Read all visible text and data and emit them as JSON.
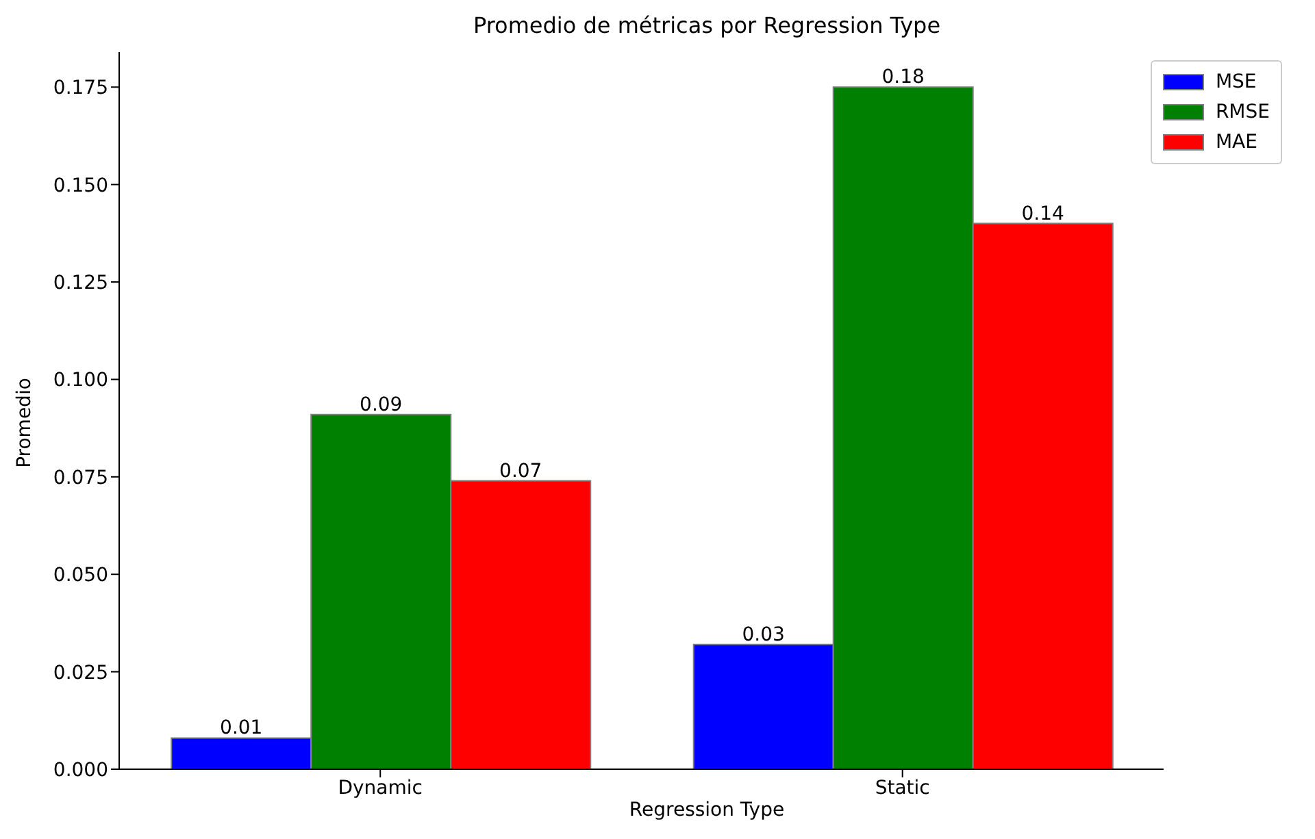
{
  "chart_data": {
    "type": "bar",
    "title": "Promedio de métricas por Regression Type",
    "xlabel": "Regression Type",
    "ylabel": "Promedio",
    "categories": [
      "Dynamic",
      "Static"
    ],
    "series": [
      {
        "name": "MSE",
        "color": "#0000ff",
        "values": [
          0.008,
          0.032
        ],
        "value_labels": [
          "0.01",
          "0.03"
        ]
      },
      {
        "name": "RMSE",
        "color": "#008000",
        "values": [
          0.091,
          0.175
        ],
        "value_labels": [
          "0.09",
          "0.18"
        ]
      },
      {
        "name": "MAE",
        "color": "#ff0000",
        "values": [
          0.074,
          0.14
        ],
        "value_labels": [
          "0.07",
          "0.14"
        ]
      }
    ],
    "ylim": [
      0,
      0.184
    ],
    "yticks": [
      {
        "value": 0,
        "label": "0.000"
      },
      0.025,
      {
        "value": 0.05,
        "label": "0.050"
      },
      0.075,
      {
        "value": 0.1,
        "label": "0.100"
      },
      0.125,
      {
        "value": 0.15,
        "label": "0.150"
      },
      0.175
    ],
    "grid": false,
    "legend": "top right"
  }
}
